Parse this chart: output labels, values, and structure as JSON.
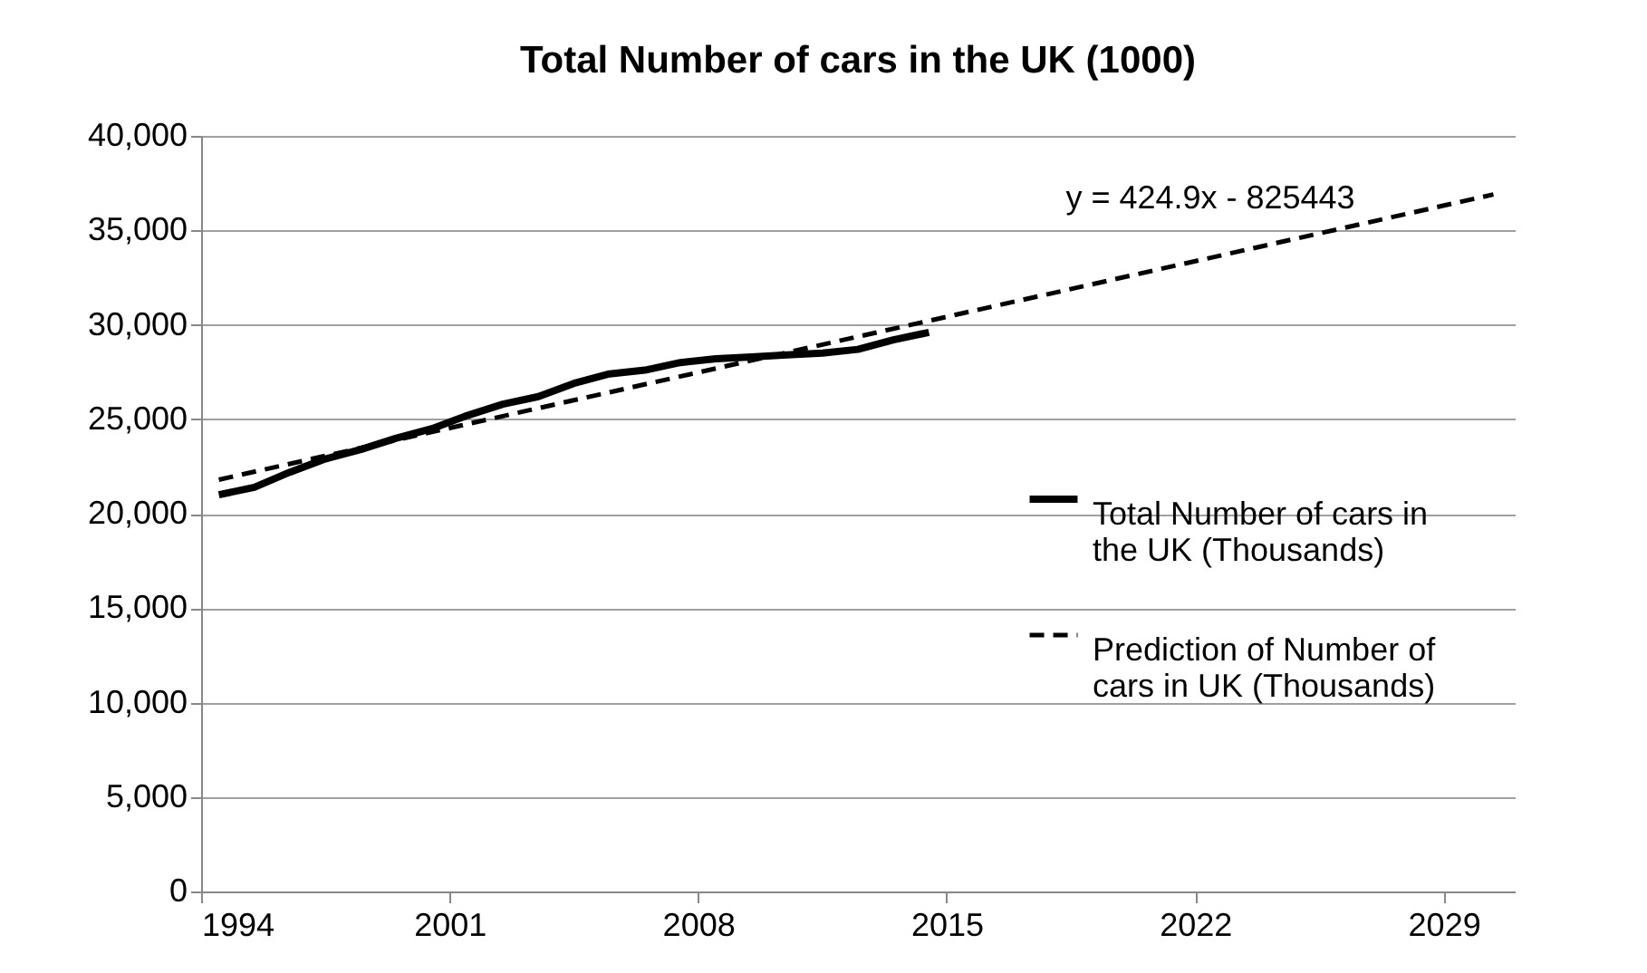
{
  "chart_data": {
    "type": "line",
    "title": "Total Number of cars in the UK (1000)",
    "xlim": [
      1994,
      2031
    ],
    "xticks": [
      1994,
      2001,
      2008,
      2015,
      2022,
      2029
    ],
    "ylim": [
      0,
      40000
    ],
    "yticks": [
      {
        "value": 0,
        "label": "0"
      },
      {
        "value": 5000,
        "label": "5,000"
      },
      {
        "value": 10000,
        "label": "10,000"
      },
      {
        "value": 15000,
        "label": "15,000"
      },
      {
        "value": 20000,
        "label": "20,000"
      },
      {
        "value": 25000,
        "label": "25,000"
      },
      {
        "value": 30000,
        "label": "30,000"
      },
      {
        "value": 35000,
        "label": "35,000"
      },
      {
        "value": 40000,
        "label": "40,000"
      }
    ],
    "grid": "y",
    "legend": "right",
    "marker": "none",
    "series": [
      {
        "name": "Total Number of cars in the UK (Thousands)",
        "type": "line",
        "color": "#000000",
        "line_style": "solid",
        "x": [
          1994.5,
          1995.5,
          1996.5,
          1997.5,
          1998.5,
          1999.5,
          2000.5,
          2001.5,
          2002.5,
          2003.5,
          2004.5,
          2005.5,
          2006.5,
          2007.5,
          2008.5,
          2009.5,
          2010.5,
          2011.5,
          2012.5,
          2013.5,
          2014.5
        ],
        "values": [
          21000,
          21400,
          22200,
          22900,
          23400,
          24000,
          24500,
          25200,
          25800,
          26200,
          26900,
          27400,
          27600,
          28000,
          28200,
          28300,
          28400,
          28500,
          28700,
          29200,
          29600
        ]
      },
      {
        "name": "Prediction of Number of cars in UK (Thousands)",
        "type": "line",
        "color": "#000000",
        "line_style": "dashed",
        "x": [
          1994.5,
          2030.4
        ],
        "values": [
          21800,
          36900
        ]
      }
    ],
    "annotations": [
      "y = 424.9x - 825443"
    ]
  }
}
